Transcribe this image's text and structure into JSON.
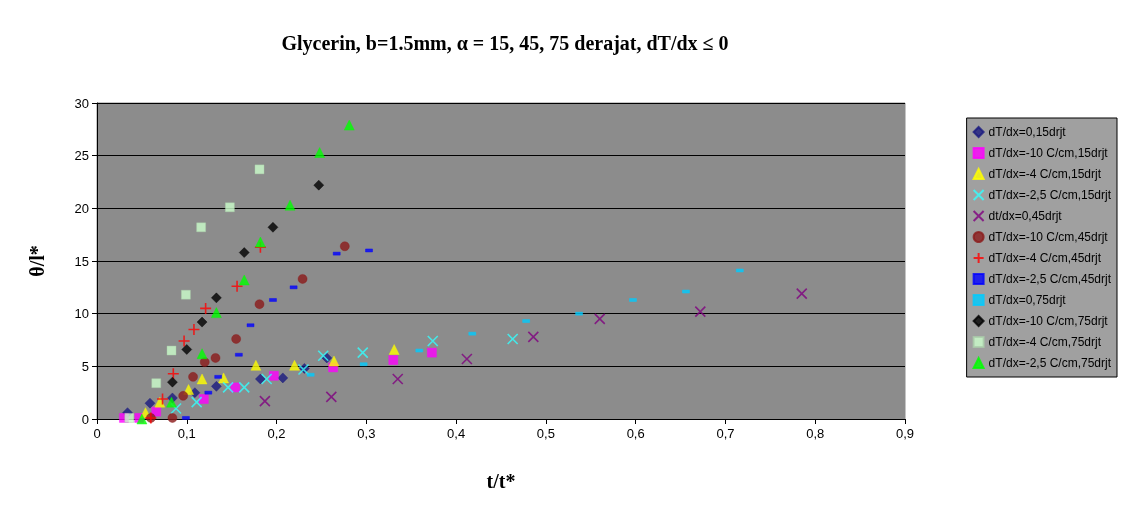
{
  "chart_data": {
    "type": "scatter",
    "title": "Glycerin, b=1.5mm, α = 15, 45, 75 derajat, dT/dx ≤ 0",
    "xlabel": "t/t*",
    "ylabel": "θ/l*",
    "xlim": [
      0,
      0.9
    ],
    "xticks": [
      0,
      {
        "value": 0.1,
        "label": "0,1"
      },
      {
        "value": 0.2,
        "label": "0,2"
      },
      {
        "value": 0.3,
        "label": "0,3"
      },
      {
        "value": 0.4,
        "label": "0,4"
      },
      {
        "value": 0.5,
        "label": "0,5"
      },
      {
        "value": 0.6,
        "label": "0,6"
      },
      {
        "value": 0.7,
        "label": "0,7"
      },
      {
        "value": 0.8,
        "label": "0,8"
      },
      {
        "value": 0.9,
        "label": "0,9"
      }
    ],
    "ylim": [
      0,
      30
    ],
    "yticks": [
      0,
      5,
      10,
      15,
      20,
      25,
      30
    ],
    "grid": "y",
    "legend": "right",
    "series": [
      {
        "name": "dT/dx=0,15drjt",
        "color": "#1a1a80",
        "marker": "diamond",
        "x": [
          0.034,
          0.059,
          0.084,
          0.109,
          0.133,
          0.182,
          0.207,
          0.231,
          0.256
        ],
        "values": [
          0.6,
          1.5,
          2.0,
          2.5,
          3.1,
          3.8,
          3.9,
          4.8,
          5.8
        ]
      },
      {
        "name": "dT/dx=-10 C/cm,15drjt",
        "color": "#ff00ff",
        "marker": "square",
        "x": [
          0.03,
          0.047,
          0.066,
          0.119,
          0.154,
          0.197,
          0.263,
          0.33,
          0.373
        ],
        "values": [
          0.1,
          0.1,
          0.7,
          1.9,
          3.0,
          4.1,
          4.9,
          5.6,
          6.3
        ]
      },
      {
        "name": "dT/dx=-4 C/cm,15drjt",
        "color": "#ffff00",
        "marker": "triangle",
        "x": [
          0.054,
          0.07,
          0.102,
          0.117,
          0.141,
          0.177,
          0.22,
          0.264,
          0.331
        ],
        "values": [
          0.6,
          1.6,
          2.8,
          3.8,
          3.9,
          5.1,
          5.1,
          5.5,
          6.6
        ]
      },
      {
        "name": "dT/dx=-2,5 C/cm,15drjt",
        "color": "#33ffff",
        "marker": "cross",
        "x": [
          0.088,
          0.111,
          0.146,
          0.164,
          0.189,
          0.23,
          0.252,
          0.296,
          0.374,
          0.463
        ],
        "values": [
          1.0,
          1.6,
          3.0,
          3.0,
          3.8,
          4.7,
          6.0,
          6.3,
          7.4,
          7.6
        ]
      },
      {
        "name": "dt/dx=0,45drjt",
        "color": "#800080",
        "marker": "cross",
        "x": [
          0.187,
          0.261,
          0.335,
          0.412,
          0.486,
          0.56,
          0.672,
          0.785
        ],
        "values": [
          1.7,
          2.1,
          3.8,
          5.7,
          7.8,
          9.5,
          10.2,
          11.9
        ]
      },
      {
        "name": "dT/dx=-10 C/cm,45drjt",
        "color": "#8b1a1a",
        "marker": "circle",
        "x": [
          0.06,
          0.084,
          0.096,
          0.107,
          0.12,
          0.132,
          0.155,
          0.181,
          0.229,
          0.276
        ],
        "values": [
          0.1,
          0.1,
          2.2,
          4.0,
          5.4,
          5.8,
          7.6,
          10.9,
          13.3,
          16.4
        ]
      },
      {
        "name": "dT/dx=-4 C/cm,45drjt",
        "color": "#ff0000",
        "marker": "plus",
        "x": [
          0.06,
          0.073,
          0.085,
          0.097,
          0.108,
          0.121,
          0.156,
          0.182
        ],
        "values": [
          0.1,
          1.9,
          4.3,
          7.4,
          8.5,
          10.5,
          12.6,
          16.3
        ]
      },
      {
        "name": "dT/dx=-2,5 C/cm,45drjt",
        "color": "#0000ff",
        "x": [
          0.099,
          0.124,
          0.135,
          0.158,
          0.171,
          0.196,
          0.219,
          0.267,
          0.303
        ],
        "values": [
          0.1,
          2.5,
          4.0,
          6.1,
          8.9,
          11.3,
          12.5,
          15.7,
          16.0
        ]
      },
      {
        "name": "dT/dx=0,75drjt",
        "color": "#00ccff",
        "x": [
          0.238,
          0.297,
          0.359,
          0.418,
          0.478,
          0.537,
          0.597,
          0.656,
          0.716
        ],
        "values": [
          4.2,
          5.2,
          6.5,
          8.1,
          9.3,
          10.0,
          11.3,
          12.1,
          14.1
        ]
      },
      {
        "name": "dT/dx=-10 C/cm,75drjt",
        "color": "#000000",
        "marker": "diamond",
        "x": [
          0.084,
          0.1,
          0.117,
          0.133,
          0.164,
          0.196,
          0.247
        ],
        "values": [
          3.5,
          6.6,
          9.2,
          11.5,
          15.8,
          18.2,
          22.2
        ]
      },
      {
        "name": "dT/dx=-4 C/cm,75drjt",
        "color": "#ccffcc",
        "marker": "square",
        "x": [
          0.036,
          0.066,
          0.083,
          0.099,
          0.116,
          0.148,
          0.181
        ],
        "values": [
          0.1,
          3.4,
          6.5,
          11.8,
          18.2,
          20.1,
          23.7
        ]
      },
      {
        "name": "dT/dx=-2,5 C/cm,75drjt",
        "color": "#00ff00",
        "marker": "triangle",
        "x": [
          0.05,
          0.083,
          0.117,
          0.133,
          0.164,
          0.182,
          0.215,
          0.248,
          0.281
        ],
        "values": [
          0.0,
          1.6,
          6.2,
          10.1,
          13.2,
          16.8,
          20.3,
          25.3,
          27.9
        ]
      }
    ]
  }
}
